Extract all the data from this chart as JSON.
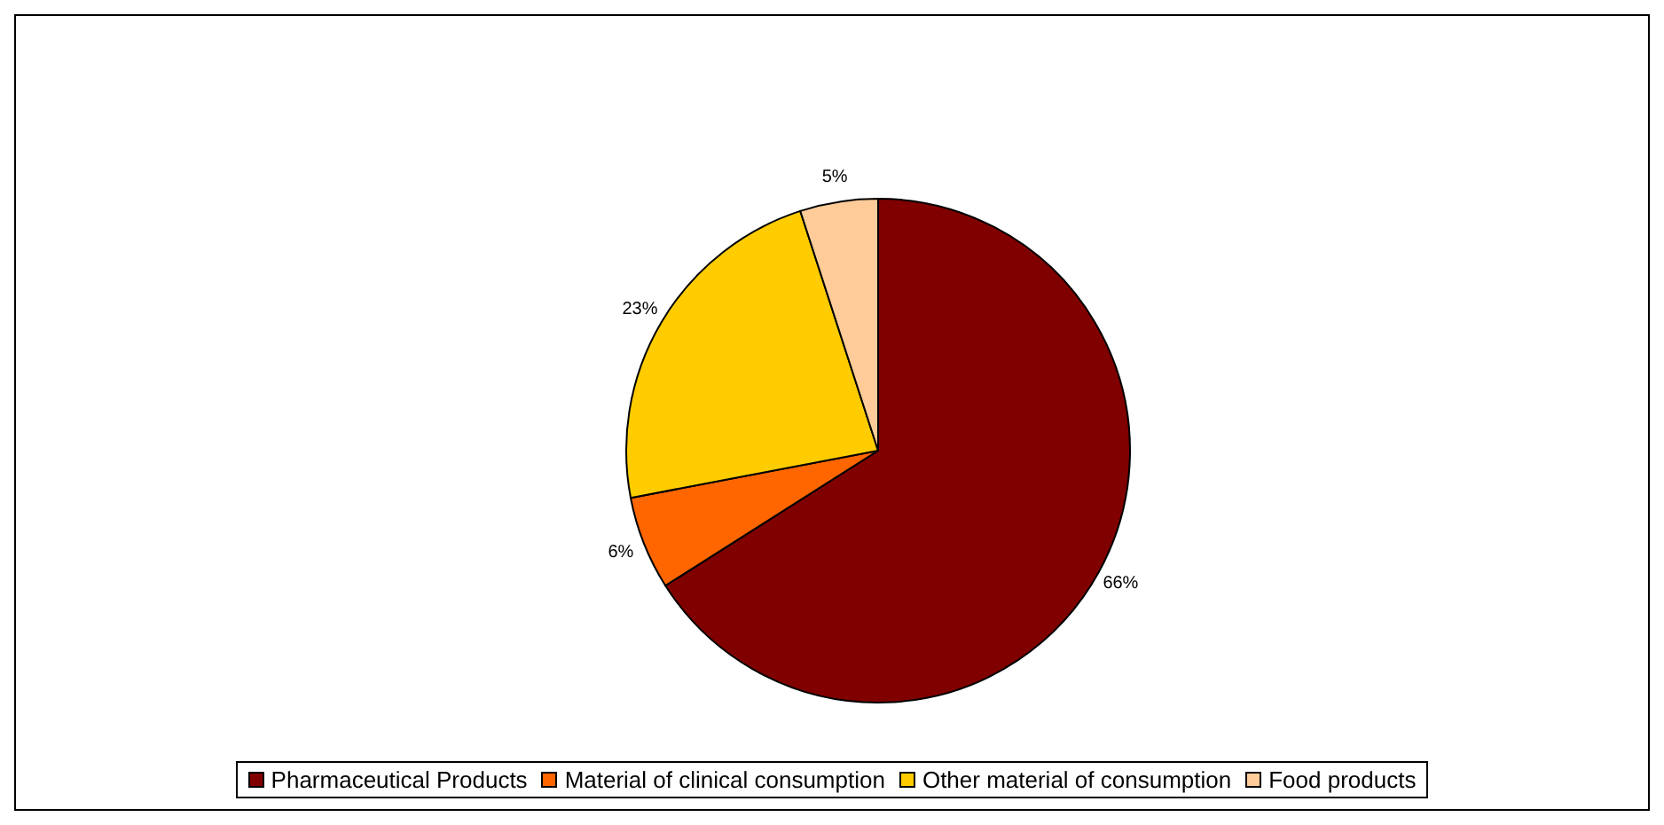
{
  "chart_data": {
    "type": "pie",
    "categories": [
      "Pharmaceutical Products",
      "Material of clinical consumption",
      "Other material of consumption",
      "Food products"
    ],
    "values": [
      66,
      6,
      23,
      5
    ],
    "colors": [
      "#800000",
      "#ff6600",
      "#ffcc00",
      "#ffcc99"
    ],
    "value_labels": [
      "66%",
      "6%",
      "23%",
      "5%"
    ],
    "legend": "bottom"
  }
}
